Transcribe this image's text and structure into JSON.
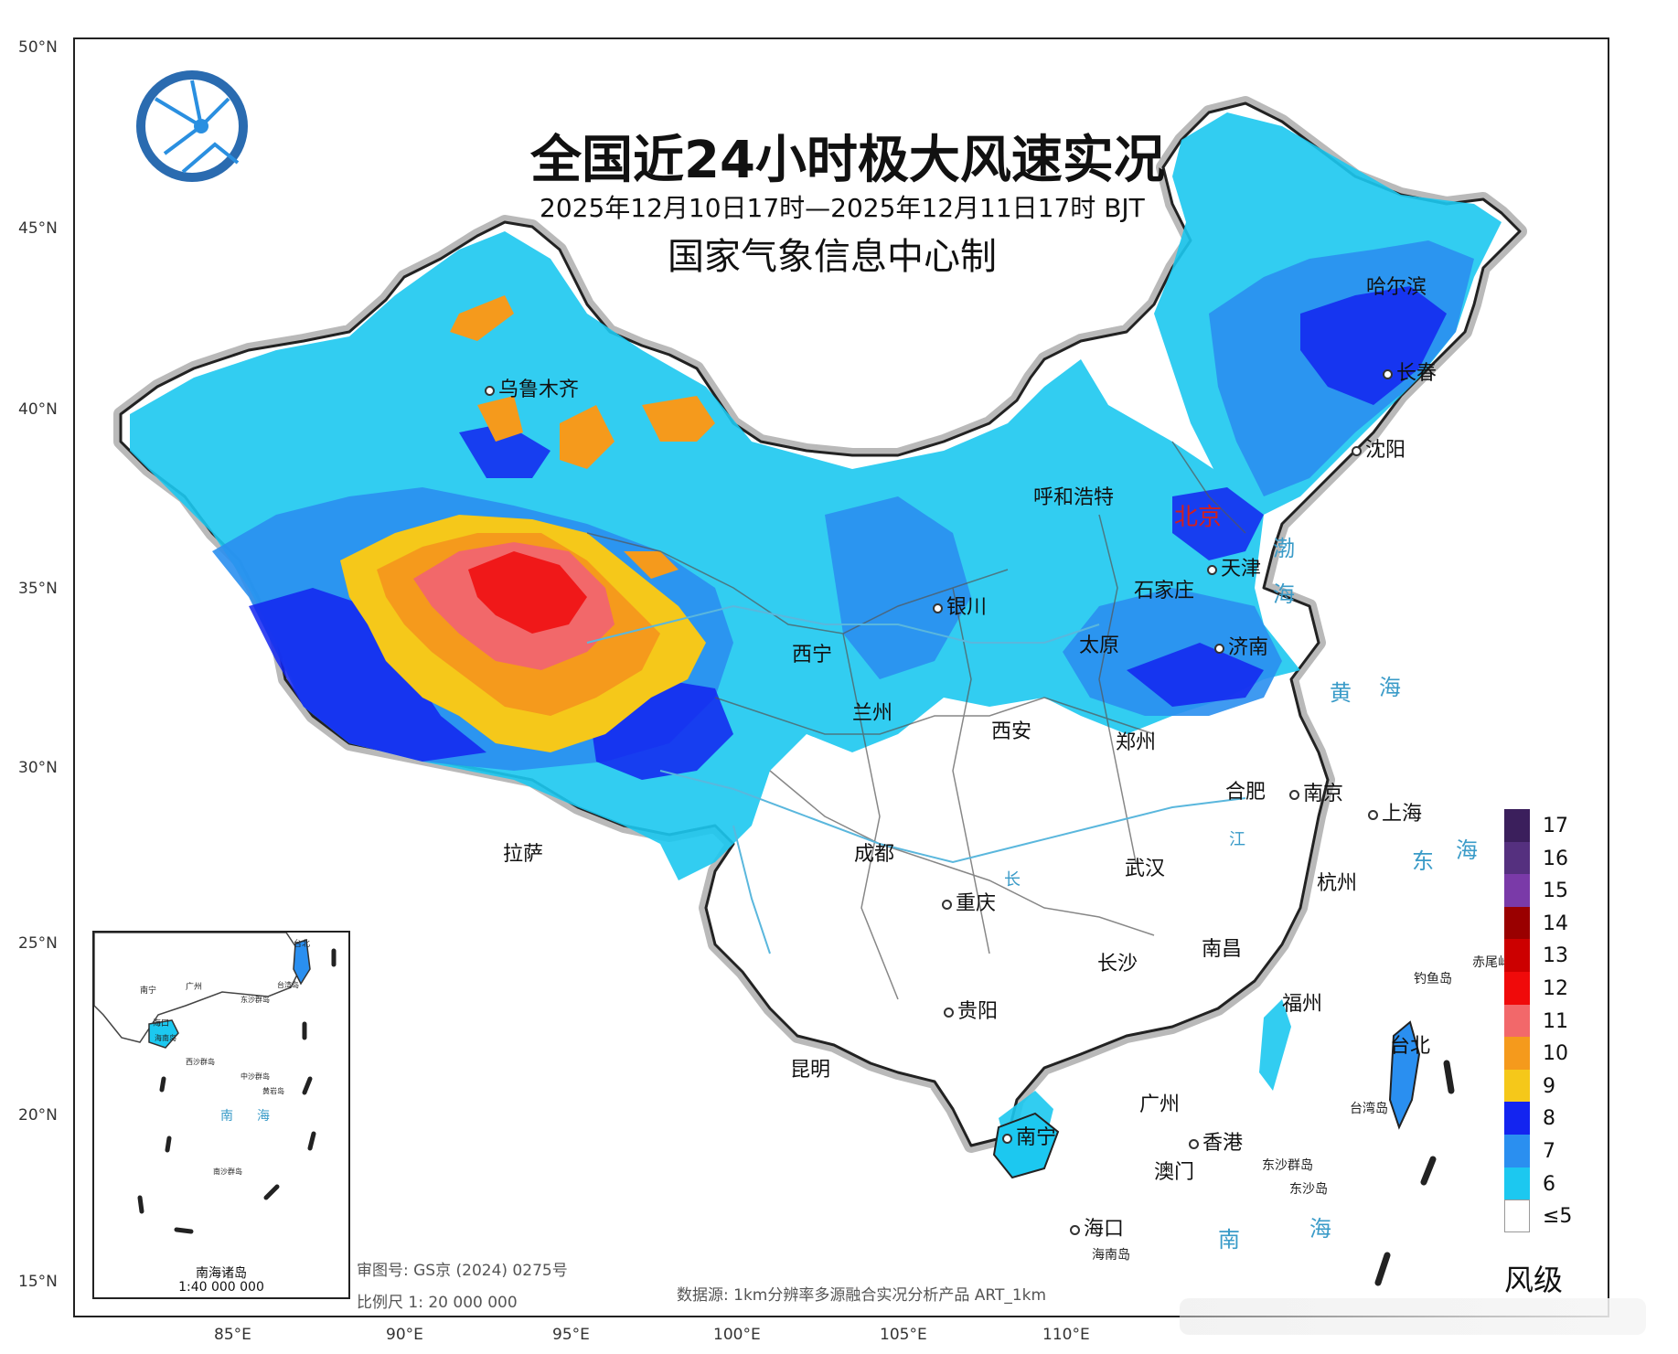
{
  "title": "全国近24小时极大风速实况",
  "subtitle": "2025年12月10日17时—2025年12月11日17时 BJT",
  "producer": "国家气象信息中心制",
  "lat_labels": [
    "50°N",
    "45°N",
    "40°N",
    "35°N",
    "30°N",
    "25°N",
    "20°N",
    "15°N"
  ],
  "lon_labels": [
    "85°E",
    "90°E",
    "95°E",
    "100°E",
    "105°E",
    "110°E"
  ],
  "cities": {
    "urumqi": "乌鲁木齐",
    "harbin": "哈尔滨",
    "changchun": "长春",
    "shenyang": "沈阳",
    "hohhot": "呼和浩特",
    "beijing": "北京",
    "tianjin": "天津",
    "shijiazhuang": "石家庄",
    "yinchuan": "银川",
    "taiyuan": "太原",
    "jinan": "济南",
    "xining": "西宁",
    "lanzhou": "兰州",
    "xian": "西安",
    "zhengzhou": "郑州",
    "hefei": "合肥",
    "nanjing": "南京",
    "shanghai": "上海",
    "lhasa": "拉萨",
    "chengdu": "成都",
    "wuhan": "武汉",
    "hangzhou": "杭州",
    "chongqing": "重庆",
    "changsha": "长沙",
    "nanchang": "南昌",
    "fuzhou": "福州",
    "guiyang": "贵阳",
    "kunming": "昆明",
    "taipei": "台北",
    "guangzhou": "广州",
    "nanning": "南宁",
    "hongkong": "香港",
    "macau": "澳门",
    "haikou": "海口"
  },
  "seas": {
    "bohai1": "渤",
    "bohai2": "海",
    "huanghai1": "黄",
    "huanghai2": "海",
    "donghai1": "东",
    "donghai2": "海",
    "nanhai1": "南",
    "nanhai2": "海",
    "yangtze": "长",
    "jiang": "江"
  },
  "islands": {
    "diaoyu": "钓鱼岛",
    "chiwei": "赤尾屿",
    "taiwan": "台湾岛",
    "dongsha_islands": "东沙群岛",
    "dongsha": "东沙岛",
    "hainan": "海南岛"
  },
  "inset": {
    "title": "南海诸岛",
    "scale": "1:40 000 000",
    "labels": {
      "nanning": "南宁",
      "guangzhou": "广州",
      "taipei": "台北",
      "haikou": "海口",
      "taiwan": "台湾岛",
      "dongsha": "东沙群岛",
      "hainan": "海南岛",
      "xisha": "西沙群岛",
      "zhongsha": "中沙群岛",
      "nansha": "南沙群岛",
      "huangyan": "黄岩岛",
      "nanhai1": "南",
      "nanhai2": "海"
    }
  },
  "approval": "审图号: GS京 (2024) 0275号",
  "scale": "比例尺  1: 20 000 000",
  "source": "数据源: 1km分辨率多源融合实况分析产品 ART_1km",
  "legend": {
    "title": "风级",
    "levels": [
      {
        "label": "17",
        "color": "#3b1f5c"
      },
      {
        "label": "16",
        "color": "#55307f"
      },
      {
        "label": "15",
        "color": "#7a3aa8"
      },
      {
        "label": "14",
        "color": "#9a0000"
      },
      {
        "label": "13",
        "color": "#cc0000"
      },
      {
        "label": "12",
        "color": "#f00a0a"
      },
      {
        "label": "11",
        "color": "#f2686a"
      },
      {
        "label": "10",
        "color": "#f59a1c"
      },
      {
        "label": "9",
        "color": "#f5c81a"
      },
      {
        "label": "8",
        "color": "#1324f0"
      },
      {
        "label": "7",
        "color": "#2a8ff0"
      },
      {
        "label": "6",
        "color": "#1cc8f0"
      },
      {
        "label": "≤5",
        "color": "#ffffff"
      }
    ]
  }
}
